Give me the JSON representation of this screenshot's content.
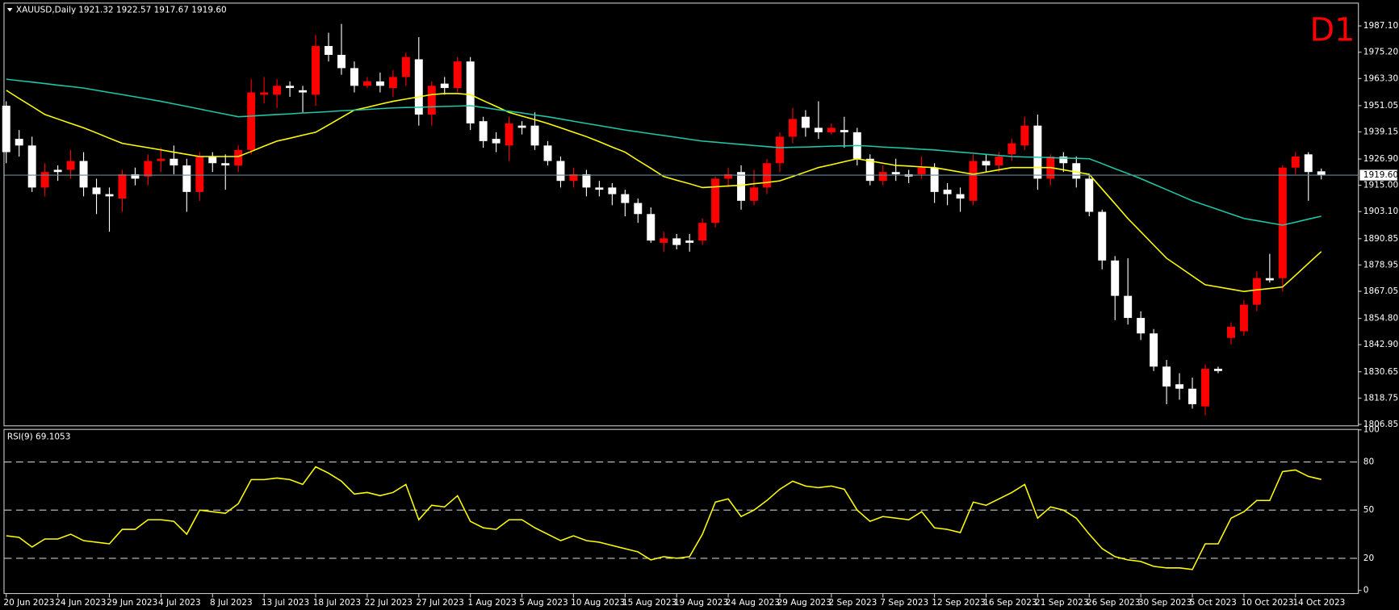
{
  "chart_data": [
    {
      "type": "candlestick",
      "title": "XAUUSD,Daily",
      "ohlc_label": "1921.32 1922.57 1917.67 1919.60",
      "timeframe": "D1",
      "categories": [
        "20 Jun 2023",
        null,
        null,
        null,
        "24 Jun 2023",
        null,
        null,
        null,
        "29 Jun 2023",
        null,
        null,
        null,
        "4 Jul 2023",
        null,
        null,
        null,
        "8 Jul 2023",
        null,
        null,
        null,
        "13 Jul 2023",
        null,
        null,
        null,
        "18 Jul 2023",
        null,
        null,
        null,
        "22 Jul 2023",
        null,
        null,
        null,
        "27 Jul 2023",
        null,
        null,
        null,
        "1 Aug 2023",
        null,
        null,
        null,
        "5 Aug 2023",
        null,
        null,
        null,
        "10 Aug 2023",
        null,
        null,
        null,
        "15 Aug 2023",
        null,
        null,
        null,
        "19 Aug 2023",
        null,
        null,
        null,
        "24 Aug 2023",
        null,
        null,
        null,
        "29 Aug 2023",
        null,
        null,
        null,
        "2 Sep 2023",
        null,
        null,
        null,
        "7 Sep 2023",
        null,
        null,
        null,
        "12 Sep 2023",
        null,
        null,
        null,
        "16 Sep 2023",
        null,
        null,
        null,
        "21 Sep 2023",
        null,
        null,
        null,
        "26 Sep 2023",
        null,
        null,
        null,
        "30 Sep 2023",
        null,
        null,
        null,
        "5 Oct 2023",
        null,
        null,
        null,
        "10 Oct 2023",
        null,
        null,
        null,
        "14 Oct 2023",
        null,
        null
      ],
      "open": [
        1951,
        1936,
        1933,
        1914,
        1922,
        1922,
        1926,
        1914,
        1911,
        1909,
        1920,
        1919,
        1926,
        1927,
        1924,
        1912,
        1928,
        1925,
        1924,
        1931,
        1956,
        1956,
        1960,
        1958,
        1956,
        1978,
        1974,
        1968,
        1960,
        1962,
        1959,
        1964,
        1972,
        1947,
        1961,
        1959,
        1971,
        1944,
        1936,
        1933,
        1942,
        1942,
        1933,
        1926,
        1917,
        1920,
        1914,
        1914,
        1911,
        1907,
        1902,
        1889,
        1891,
        1890,
        1890,
        1898,
        1918,
        1921,
        1908,
        1914,
        1925,
        1937,
        1946,
        1941,
        1939,
        1940,
        1939,
        1927,
        1917,
        1921,
        1920,
        1920,
        1923,
        1913,
        1911,
        1908,
        1926,
        1924,
        1929,
        1933,
        1942,
        1918,
        1928,
        1925,
        1918,
        1903,
        1881,
        1865,
        1855,
        1848,
        1833,
        1825,
        1823,
        1815,
        1832,
        1846,
        1849,
        1861,
        1873,
        1873,
        1923,
        1929,
        1921.32
      ],
      "high": [
        1953,
        1940,
        1937,
        1925,
        1924,
        1931,
        1930,
        1918,
        1914,
        1922,
        1923,
        1929,
        1932,
        1933,
        1927,
        1930,
        1930,
        1929,
        1933,
        1963,
        1964,
        1963,
        1962,
        1960,
        1983,
        1984,
        1988,
        1971,
        1964,
        1966,
        1967,
        1975,
        1982,
        1962,
        1964,
        1973,
        1973,
        1946,
        1939,
        1946,
        1944,
        1948,
        1935,
        1928,
        1923,
        1922,
        1917,
        1916,
        1913,
        1909,
        1905,
        1894,
        1893,
        1893,
        1900,
        1919,
        1923,
        1924,
        1922,
        1927,
        1939,
        1950,
        1949,
        1953,
        1943,
        1946,
        1941,
        1929,
        1924,
        1927,
        1922,
        1928,
        1925,
        1916,
        1914,
        1929,
        1929,
        1930,
        1936,
        1946,
        1947,
        1929,
        1930,
        1928,
        1920,
        1904,
        1883,
        1882,
        1858,
        1850,
        1836,
        1830,
        1828,
        1834,
        1833,
        1853,
        1863,
        1876,
        1884,
        1924,
        1930,
        1930,
        1922.57
      ],
      "low": [
        1925,
        1928,
        1912,
        1910,
        1917,
        1918,
        1910,
        1902,
        1894,
        1903,
        1915,
        1915,
        1921,
        1920,
        1903,
        1908,
        1921,
        1913,
        1921,
        1929,
        1952,
        1950,
        1955,
        1948,
        1951,
        1971,
        1965,
        1957,
        1959,
        1957,
        1955,
        1960,
        1942,
        1942,
        1956,
        1957,
        1940,
        1932,
        1930,
        1926,
        1938,
        1931,
        1924,
        1914,
        1914,
        1910,
        1910,
        1906,
        1901,
        1898,
        1889,
        1885,
        1886,
        1885,
        1888,
        1896,
        1914,
        1904,
        1906,
        1911,
        1921,
        1934,
        1937,
        1936,
        1938,
        1932,
        1924,
        1915,
        1915,
        1917,
        1916,
        1918,
        1907,
        1906,
        1903,
        1906,
        1921,
        1921,
        1926,
        1931,
        1913,
        1915,
        1921,
        1914,
        1901,
        1877,
        1854,
        1852,
        1845,
        1831,
        1816,
        1818,
        1814,
        1811,
        1830,
        1843,
        1847,
        1858,
        1871,
        1867,
        1920,
        1908,
        1917.67
      ],
      "close": [
        1930,
        1933,
        1914,
        1921,
        1921,
        1926,
        1914,
        1911,
        1910,
        1920,
        1918,
        1926,
        1927,
        1924,
        1912,
        1928,
        1925,
        1924,
        1931,
        1957,
        1957,
        1960,
        1959,
        1957,
        1978,
        1974,
        1968,
        1960,
        1962,
        1960,
        1964,
        1973,
        1947,
        1960,
        1959,
        1971,
        1943,
        1935,
        1934,
        1943,
        1941,
        1933,
        1926,
        1917,
        1920,
        1914,
        1913,
        1911,
        1907,
        1902,
        1890,
        1891,
        1888,
        1889,
        1898,
        1918,
        1920,
        1908,
        1914,
        1925,
        1937,
        1945,
        1941,
        1939,
        1941,
        1939,
        1927,
        1917,
        1921,
        1920,
        1919,
        1923,
        1912,
        1911,
        1909,
        1926,
        1924,
        1928,
        1934,
        1942,
        1918,
        1928,
        1925,
        1918,
        1903,
        1881,
        1865,
        1855,
        1848,
        1833,
        1824,
        1823,
        1816,
        1832,
        1831,
        1851,
        1861,
        1873,
        1872,
        1923,
        1928,
        1921,
        1919.6
      ],
      "up_color": "#ff0000",
      "down_color": "#ffffff",
      "lines": [
        {
          "color": "#ffff00",
          "values": [
            1958,
            1954.3,
            1950.7,
            1947,
            1945,
            1943,
            1941,
            1938.7,
            1936.3,
            1934,
            1933,
            1932,
            1931,
            1930,
            1929,
            1928,
            1928,
            1928,
            1928,
            1930.3,
            1932.7,
            1935,
            1936.3,
            1937.7,
            1939,
            1942.3,
            1945.7,
            1949,
            1950.3,
            1951.7,
            1953,
            1954,
            1955,
            1956,
            1956.5,
            1956.5,
            1956,
            1953.3,
            1950.7,
            1948,
            1946.3,
            1944.7,
            1943,
            1941,
            1939,
            1937,
            1934.7,
            1932.3,
            1930,
            1926.3,
            1922.7,
            1919,
            1917.3,
            1915.7,
            1914,
            1914.3,
            1914.7,
            1915,
            1915.7,
            1916.3,
            1917,
            1919,
            1921,
            1923,
            1924.3,
            1925.7,
            1927,
            1926,
            1925,
            1924,
            1923.7,
            1923.3,
            1923,
            1922,
            1921,
            1920,
            1921,
            1922,
            1923,
            1923,
            1923,
            1923,
            1922,
            1921,
            1920,
            1913.3,
            1906.7,
            1900,
            1894,
            1888,
            1882,
            1878,
            1874,
            1870,
            1869,
            1868,
            1867,
            1867.7,
            1868.3,
            1869,
            1874.3,
            1879.7,
            1885
          ]
        },
        {
          "color": "#1fc7a8",
          "values": [
            1963,
            1962.3,
            1961.7,
            1961,
            1960.3,
            1959.7,
            1959,
            1958,
            1957,
            1956,
            1955,
            1954,
            1953,
            1951.8,
            1950.7,
            1949.5,
            1948.3,
            1947.2,
            1946,
            1946.3,
            1946.7,
            1947,
            1947.3,
            1947.7,
            1948,
            1948.3,
            1948.7,
            1949,
            1949.3,
            1949.7,
            1950,
            1950.2,
            1950.3,
            1950.5,
            1950.7,
            1950.8,
            1951,
            1950.2,
            1949.3,
            1948.5,
            1947.7,
            1946.8,
            1946,
            1945,
            1944,
            1943,
            1942,
            1941,
            1940,
            1939.2,
            1938.3,
            1937.5,
            1936.7,
            1935.8,
            1935,
            1934.5,
            1934,
            1933.5,
            1933,
            1932.5,
            1932,
            1932.2,
            1932.3,
            1932.5,
            1932.7,
            1932.8,
            1933,
            1932.7,
            1932.3,
            1932,
            1931.7,
            1931.3,
            1931,
            1930.5,
            1930,
            1929.5,
            1929,
            1928.5,
            1928,
            1927.8,
            1927.7,
            1927.5,
            1927.3,
            1927.2,
            1927,
            1924.8,
            1922.5,
            1920.3,
            1918,
            1915.5,
            1913,
            1910.5,
            1908,
            1906,
            1904,
            1902,
            1900,
            1899,
            1898,
            1897,
            1898.3,
            1899.7,
            1901
          ]
        }
      ],
      "ylim": [
        1806.4,
        1997.2
      ],
      "yticks": [
        {
          "value": 1987.1,
          "label": "1987.10"
        },
        {
          "value": 1975.2,
          "label": "1975.20"
        },
        {
          "value": 1963.3,
          "label": "1963.30"
        },
        {
          "value": 1951.05,
          "label": "1951.05"
        },
        {
          "value": 1939.15,
          "label": "1939.15"
        },
        {
          "value": 1926.9,
          "label": "1926.90"
        },
        {
          "value": 1915,
          "label": "1915.00"
        },
        {
          "value": 1903.1,
          "label": "1903.10"
        },
        {
          "value": 1890.85,
          "label": "1890.85"
        },
        {
          "value": 1878.95,
          "label": "1878.95"
        },
        {
          "value": 1867.05,
          "label": "1867.05"
        },
        {
          "value": 1854.8,
          "label": "1854.80"
        },
        {
          "value": 1842.9,
          "label": "1842.90"
        },
        {
          "value": 1830.65,
          "label": "1830.65"
        },
        {
          "value": 1818.75,
          "label": "1818.75"
        },
        {
          "value": 1806.85,
          "label": "1806.85"
        }
      ],
      "price_line": {
        "value": 1919.6,
        "label": "1919.60",
        "color": "#5f8a96"
      }
    },
    {
      "type": "line",
      "title": "RSI(9) 69.1053",
      "color": "#ffff00",
      "values": [
        34,
        33,
        27,
        32,
        32,
        35,
        31,
        30,
        29,
        38,
        38,
        44,
        44,
        43,
        35,
        50,
        49,
        48,
        54,
        69,
        69,
        70,
        69,
        66,
        77,
        73,
        68,
        60,
        61,
        59,
        61,
        66,
        44,
        53,
        52,
        59,
        43,
        39,
        38,
        44,
        44,
        39,
        35,
        31,
        34,
        31,
        30,
        28,
        26,
        24,
        19,
        21,
        20,
        21,
        35,
        55,
        57,
        46,
        50,
        56,
        63,
        68,
        65,
        64,
        65,
        63,
        50,
        43,
        46,
        45,
        44,
        49,
        39,
        38,
        36,
        55,
        53,
        57,
        61,
        66,
        45,
        52,
        50,
        45,
        35,
        26,
        21,
        19,
        18,
        15,
        14,
        14,
        13,
        29,
        29,
        45,
        49,
        56,
        56,
        74,
        75,
        71,
        69.1053
      ],
      "ylim": [
        0,
        100
      ],
      "yticks": [
        0,
        20,
        50,
        80,
        100
      ],
      "grid": "dashed"
    }
  ]
}
